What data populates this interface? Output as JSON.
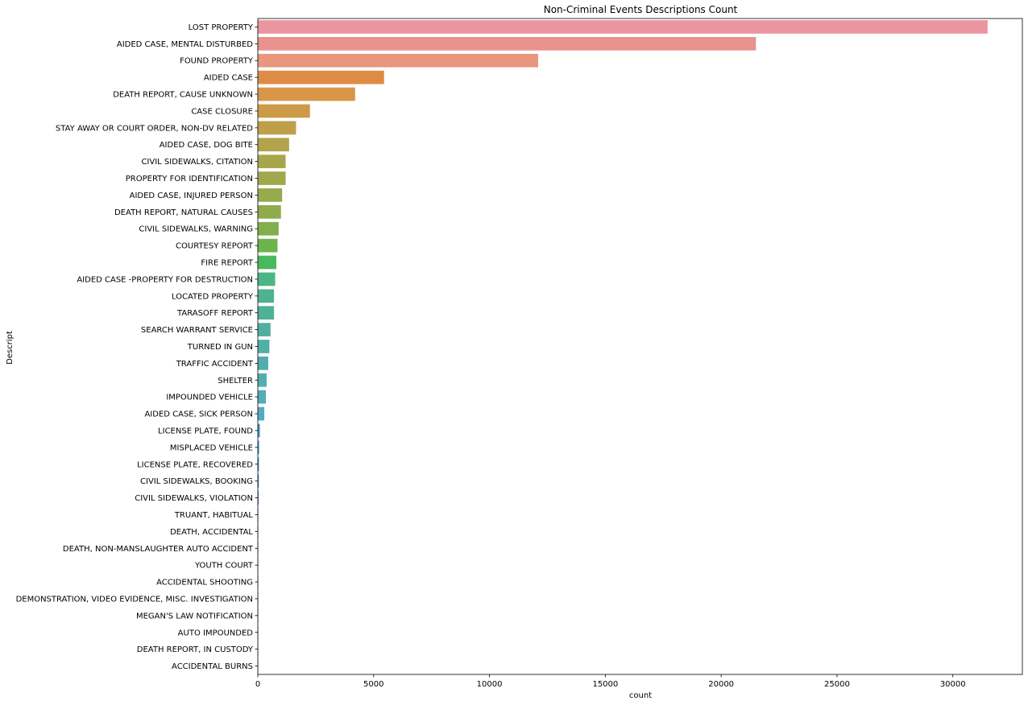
{
  "chart_data": {
    "type": "bar",
    "orientation": "horizontal",
    "title": "Non-Criminal Events Descriptions Count",
    "xlabel": "count",
    "ylabel": "Descript",
    "xlim": [
      0,
      33000
    ],
    "xticks": [
      0,
      5000,
      10000,
      15000,
      20000,
      25000,
      30000
    ],
    "grid": false,
    "categories": [
      "LOST PROPERTY",
      "AIDED CASE, MENTAL DISTURBED",
      "FOUND PROPERTY",
      "AIDED CASE",
      "DEATH REPORT, CAUSE UNKNOWN",
      "CASE CLOSURE",
      "STAY AWAY OR COURT ORDER, NON-DV RELATED",
      "AIDED CASE, DOG BITE",
      "CIVIL SIDEWALKS, CITATION",
      "PROPERTY FOR IDENTIFICATION",
      "AIDED CASE, INJURED PERSON",
      "DEATH REPORT, NATURAL CAUSES",
      "CIVIL SIDEWALKS, WARNING",
      "COURTESY REPORT",
      "FIRE REPORT",
      "AIDED CASE -PROPERTY FOR DESTRUCTION",
      "LOCATED PROPERTY",
      "TARASOFF REPORT",
      "SEARCH WARRANT SERVICE",
      "TURNED IN GUN",
      "TRAFFIC ACCIDENT",
      "SHELTER",
      "IMPOUNDED VEHICLE",
      "AIDED CASE, SICK PERSON",
      "LICENSE PLATE, FOUND",
      "MISPLACED VEHICLE",
      "LICENSE PLATE, RECOVERED",
      "CIVIL SIDEWALKS, BOOKING",
      "CIVIL SIDEWALKS, VIOLATION",
      "TRUANT, HABITUAL",
      "DEATH, ACCIDENTAL",
      "DEATH, NON-MANSLAUGHTER AUTO ACCIDENT",
      "YOUTH COURT",
      "ACCIDENTAL SHOOTING",
      "DEMONSTRATION, VIDEO EVIDENCE, MISC. INVESTIGATION",
      "MEGAN'S LAW NOTIFICATION",
      "AUTO IMPOUNDED",
      "DEATH REPORT, IN CUSTODY",
      "ACCIDENTAL BURNS"
    ],
    "values": [
      31500,
      21500,
      12100,
      5450,
      4200,
      2250,
      1650,
      1350,
      1200,
      1200,
      1050,
      1000,
      900,
      850,
      800,
      750,
      700,
      700,
      550,
      500,
      450,
      380,
      350,
      280,
      90,
      55,
      50,
      45,
      40,
      12,
      9,
      7,
      5,
      4,
      3,
      3,
      2,
      2,
      1
    ],
    "colors": [
      "#ea96a1",
      "#e9928e",
      "#e9967e",
      "#de8b45",
      "#d99648",
      "#cc9b48",
      "#bfa04a",
      "#b3a34b",
      "#a9a54b",
      "#a0a84c",
      "#97aa4c",
      "#8eac4c",
      "#81af4c",
      "#6db34c",
      "#4ab85c",
      "#4db485",
      "#4eb290",
      "#4fb198",
      "#50b0a0",
      "#51afa5",
      "#52aeac",
      "#52adb1",
      "#53acb6",
      "#55abbd",
      "#3a9acb",
      "#2e9ad6",
      "#3399d6",
      "#4597d6",
      "#5e96d6",
      "#8594d6",
      "#9592d6",
      "#a890d6",
      "#b88cd6",
      "#c789d6",
      "#d386c9",
      "#dc86bc",
      "#e289ad",
      "#e68c9f",
      "#e88e93"
    ]
  }
}
